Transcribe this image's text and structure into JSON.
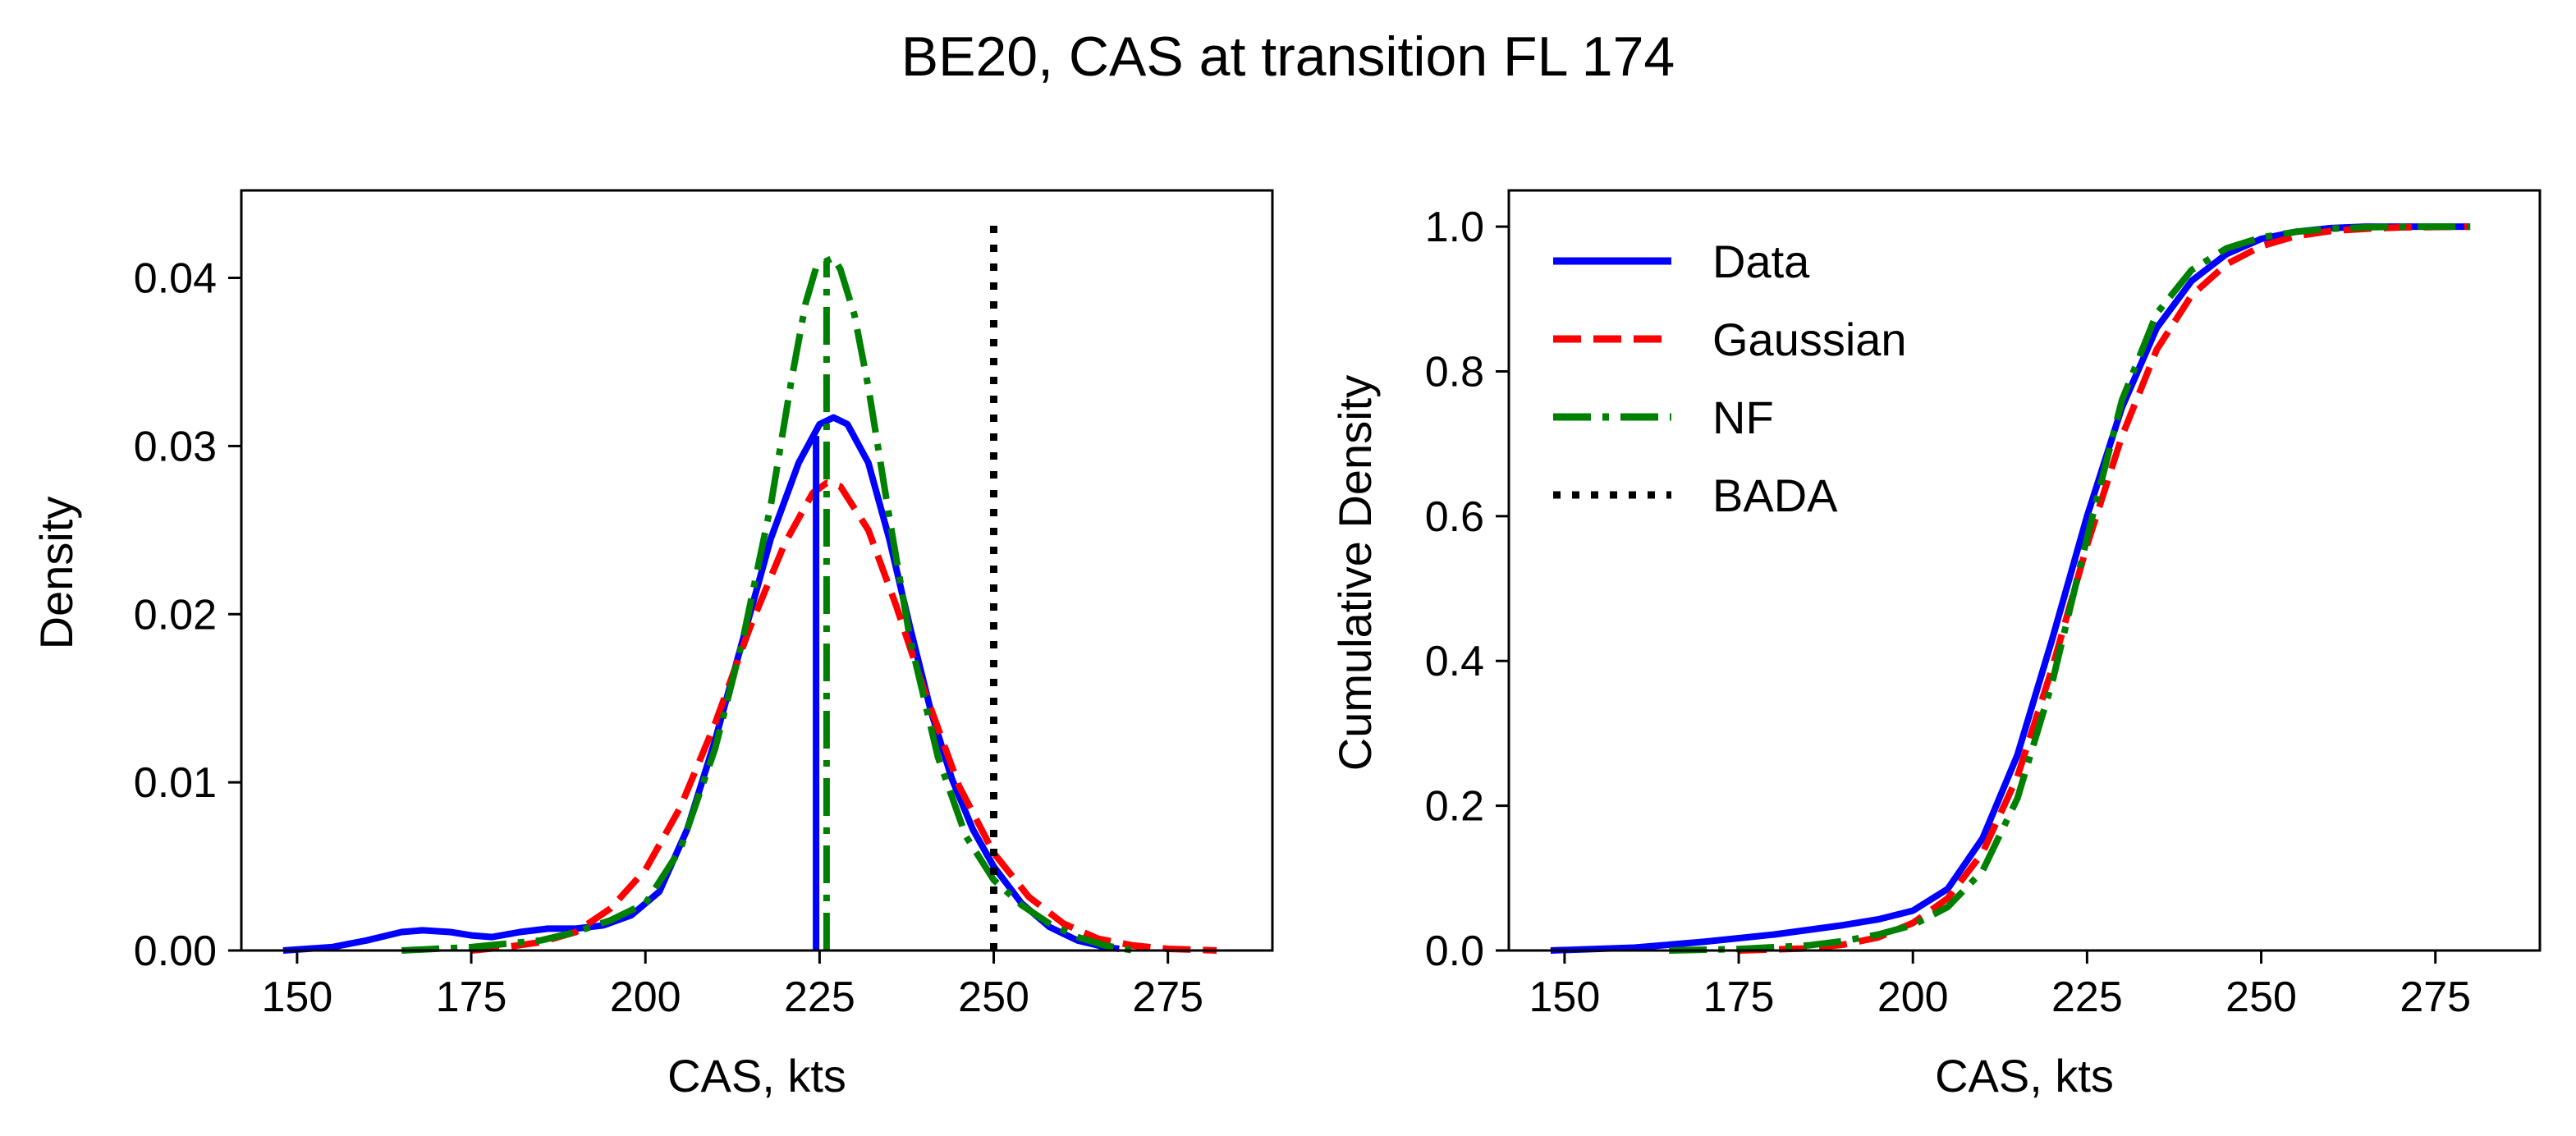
{
  "title": "BE20, CAS at transition FL 174",
  "colors": {
    "data": "#0000ff",
    "gaussian": "#ff0000",
    "nf": "#008000",
    "bada": "#000000"
  },
  "chart_data": [
    {
      "type": "line",
      "xlabel": "CAS, kts",
      "ylabel": "Density",
      "xlim": [
        142,
        290
      ],
      "ylim": [
        0,
        0.0452
      ],
      "xticks": [
        150,
        175,
        200,
        225,
        250,
        275
      ],
      "xtick_labels": [
        "150",
        "175",
        "200",
        "225",
        "250",
        "275"
      ],
      "yticks": [
        0,
        0.01,
        0.02,
        0.03,
        0.04
      ],
      "ytick_labels": [
        "0.00",
        "0.01",
        "0.02",
        "0.03",
        "0.04"
      ],
      "grid": false,
      "series": [
        {
          "name": "Data",
          "style": "solid",
          "x": [
            148,
            155,
            160,
            165,
            168,
            172,
            175,
            178,
            182,
            186,
            190,
            194,
            198,
            202,
            206,
            210,
            214,
            218,
            222,
            225,
            227,
            229,
            232,
            235,
            238,
            241,
            244,
            247,
            250,
            254,
            258,
            262,
            266,
            268
          ],
          "y": [
            0.0,
            0.0002,
            0.0006,
            0.0011,
            0.0012,
            0.0011,
            0.0009,
            0.0008,
            0.0011,
            0.0013,
            0.0013,
            0.0015,
            0.0021,
            0.0035,
            0.0072,
            0.0125,
            0.0185,
            0.0245,
            0.029,
            0.0313,
            0.0317,
            0.0313,
            0.029,
            0.0245,
            0.0192,
            0.0142,
            0.0102,
            0.0072,
            0.005,
            0.0028,
            0.0014,
            0.0006,
            0.0002,
            0.0001
          ]
        },
        {
          "name": "Gaussian",
          "style": "dashed",
          "x": [
            175,
            180,
            185,
            190,
            195,
            200,
            205,
            210,
            215,
            220,
            224,
            226,
            228,
            232,
            236,
            240,
            245,
            250,
            255,
            260,
            265,
            270,
            275,
            282
          ],
          "y": [
            0.0,
            0.0002,
            0.0005,
            0.0011,
            0.0025,
            0.0048,
            0.0085,
            0.0135,
            0.0192,
            0.0242,
            0.0272,
            0.0278,
            0.0276,
            0.025,
            0.0205,
            0.0155,
            0.0098,
            0.0058,
            0.0032,
            0.0016,
            0.0007,
            0.0003,
            0.0001,
            0.0
          ]
        },
        {
          "name": "NF",
          "style": "dashdot",
          "x": [
            165,
            175,
            185,
            190,
            195,
            200,
            205,
            210,
            214,
            218,
            221,
            223,
            224.5,
            226,
            227,
            228,
            230,
            232,
            235,
            238,
            242,
            246,
            250,
            254,
            258,
            262,
            266,
            270
          ],
          "y": [
            0.0,
            0.0002,
            0.0006,
            0.0011,
            0.0018,
            0.0028,
            0.006,
            0.012,
            0.0185,
            0.0265,
            0.034,
            0.0385,
            0.0406,
            0.041,
            0.0412,
            0.0405,
            0.0378,
            0.0335,
            0.0258,
            0.0185,
            0.0115,
            0.0068,
            0.0042,
            0.0027,
            0.0016,
            0.0008,
            0.0003,
            0.0
          ]
        },
        {
          "name": "Data median",
          "style": "solid",
          "x": [
            224.5,
            224.5
          ],
          "y": [
            0.0,
            0.0306
          ]
        },
        {
          "name": "NF median",
          "style": "dashdot",
          "x": [
            226,
            226
          ],
          "y": [
            0.0,
            0.041
          ]
        },
        {
          "name": "BADA",
          "style": "dotted",
          "x": [
            250,
            250
          ],
          "y": [
            0.0,
            0.0433
          ]
        }
      ]
    },
    {
      "type": "line",
      "xlabel": "CAS, kts",
      "ylabel": "Cumulative Density",
      "xlim": [
        142,
        290
      ],
      "ylim": [
        0,
        1.05
      ],
      "xticks": [
        150,
        175,
        200,
        225,
        250,
        275
      ],
      "xtick_labels": [
        "150",
        "175",
        "200",
        "225",
        "250",
        "275"
      ],
      "yticks": [
        0,
        0.2,
        0.4,
        0.6,
        0.8,
        1.0
      ],
      "ytick_labels": [
        "0.0",
        "0.2",
        "0.4",
        "0.6",
        "0.8",
        "1.0"
      ],
      "grid": false,
      "legend": {
        "placement": "upper-left",
        "entries": [
          "Data",
          "Gaussian",
          "NF",
          "BADA"
        ]
      },
      "series": [
        {
          "name": "Data",
          "style": "solid",
          "x": [
            148,
            160,
            170,
            180,
            190,
            195,
            200,
            205,
            210,
            215,
            220,
            225,
            230,
            235,
            240,
            245,
            250,
            255,
            260,
            265,
            270,
            280
          ],
          "y": [
            0.0,
            0.004,
            0.012,
            0.022,
            0.035,
            0.043,
            0.055,
            0.085,
            0.155,
            0.27,
            0.43,
            0.6,
            0.75,
            0.86,
            0.925,
            0.962,
            0.983,
            0.993,
            0.998,
            1.0,
            1.0,
            1.0
          ]
        },
        {
          "name": "Gaussian",
          "style": "dashed",
          "x": [
            175,
            185,
            190,
            195,
            200,
            205,
            210,
            215,
            220,
            225,
            230,
            235,
            240,
            245,
            250,
            255,
            260,
            265,
            270,
            280
          ],
          "y": [
            0.0,
            0.003,
            0.008,
            0.018,
            0.038,
            0.072,
            0.135,
            0.24,
            0.39,
            0.56,
            0.71,
            0.83,
            0.905,
            0.948,
            0.973,
            0.987,
            0.994,
            0.997,
            0.999,
            1.0
          ]
        },
        {
          "name": "NF",
          "style": "dashdot",
          "x": [
            165,
            175,
            185,
            190,
            195,
            200,
            205,
            210,
            215,
            220,
            225,
            230,
            235,
            240,
            245,
            250,
            255,
            260,
            265,
            270,
            280
          ],
          "y": [
            0.0,
            0.002,
            0.007,
            0.013,
            0.022,
            0.035,
            0.06,
            0.11,
            0.21,
            0.37,
            0.57,
            0.76,
            0.88,
            0.94,
            0.97,
            0.985,
            0.993,
            0.997,
            0.999,
            1.0,
            1.0
          ]
        }
      ]
    }
  ]
}
